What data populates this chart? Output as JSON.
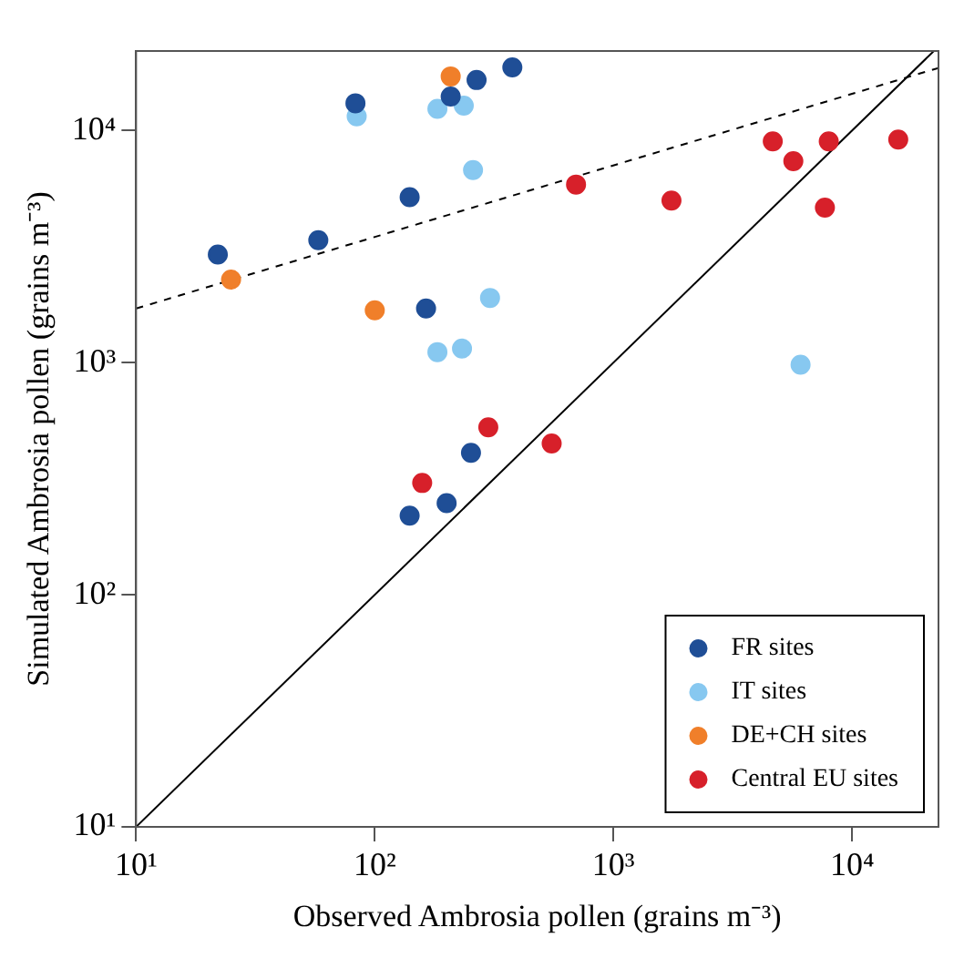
{
  "chart_data": {
    "type": "scatter",
    "xlabel": "Observed Ambrosia pollen (grains m⁻³)",
    "ylabel": "Simulated Ambrosia pollen (grains m⁻³)",
    "log": "xy",
    "xlim": [
      10,
      23000
    ],
    "ylim": [
      10,
      22000
    ],
    "xticks": [
      {
        "value": 10,
        "label": "10¹"
      },
      {
        "value": 100,
        "label": "10²"
      },
      {
        "value": 1000,
        "label": "10³"
      },
      {
        "value": 10000,
        "label": "10⁴"
      }
    ],
    "yticks": [
      {
        "value": 10,
        "label": "10¹"
      },
      {
        "value": 100,
        "label": "10²"
      },
      {
        "value": 1000,
        "label": "10³"
      },
      {
        "value": 10000,
        "label": "10⁴"
      }
    ],
    "grid": false,
    "legend": "bottom right",
    "marker": "circle",
    "series": [
      {
        "name": "FR sites",
        "color": "#1f4e96",
        "x": [
          83,
          267,
          377,
          208,
          140,
          58,
          22,
          164,
          253,
          200,
          140
        ],
        "values": [
          13100,
          16500,
          18700,
          14000,
          5160,
          3370,
          2920,
          1710,
          409,
          248,
          219
        ]
      },
      {
        "name": "IT sites",
        "color": "#87c8f0",
        "x": [
          84,
          183,
          236,
          258,
          304,
          183,
          232,
          6080
        ],
        "values": [
          11500,
          12400,
          12800,
          6750,
          1900,
          1110,
          1150,
          980
        ]
      },
      {
        "name": "DE+CH sites",
        "color": "#f07f2a",
        "x": [
          208,
          25,
          100
        ],
        "values": [
          17100,
          2280,
          1680
        ]
      },
      {
        "name": "Central EU sites",
        "color": "#d7202a",
        "x": [
          299,
          158,
          551,
          697,
          1750,
          4650,
          5670,
          7980,
          7690,
          15600
        ],
        "values": [
          526,
          303,
          448,
          5850,
          4990,
          8980,
          7380,
          8980,
          4650,
          9140
        ]
      },
      {
        "type": "line",
        "color": "#000000",
        "line_style": "dashed",
        "marker": "none",
        "x": [
          10,
          23000
        ],
        "values": [
          1710,
          18600
        ]
      },
      {
        "type": "line",
        "color": "#000000",
        "line_style": "solid",
        "marker": "none",
        "x": [
          10,
          22000
        ],
        "values": [
          10,
          22000
        ]
      }
    ]
  }
}
